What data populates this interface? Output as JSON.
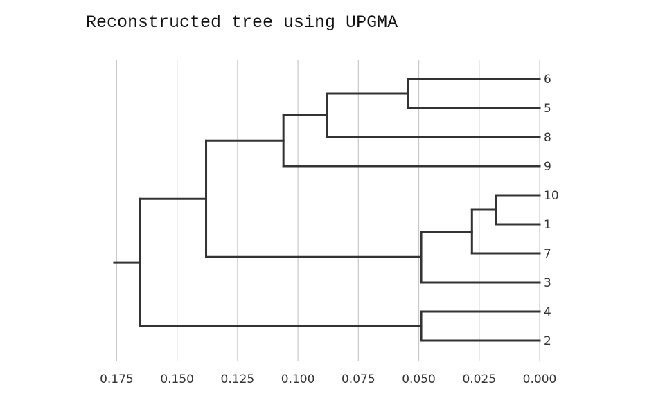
{
  "chart_data": {
    "type": "dendrogram",
    "title": "Reconstructed tree using UPGMA",
    "orientation": "root-left",
    "x_axis": {
      "ticks": [
        0.175,
        0.15,
        0.125,
        0.1,
        0.075,
        0.05,
        0.025,
        0.0
      ],
      "tick_labels": [
        "0.175",
        "0.150",
        "0.125",
        "0.100",
        "0.075",
        "0.050",
        "0.025",
        "0.000"
      ],
      "range": [
        0.175,
        0.0
      ],
      "grid": true
    },
    "leaves": [
      "6",
      "5",
      "8",
      "9",
      "10",
      "1",
      "7",
      "3",
      "4",
      "2"
    ],
    "nodes": [
      {
        "id": "n65",
        "height": 0.0545,
        "children": [
          "6",
          "5"
        ]
      },
      {
        "id": "n658",
        "height": 0.088,
        "children": [
          "n65",
          "8"
        ]
      },
      {
        "id": "n6589",
        "height": 0.106,
        "children": [
          "n658",
          "9"
        ]
      },
      {
        "id": "n101",
        "height": 0.018,
        "children": [
          "10",
          "1"
        ]
      },
      {
        "id": "n1017",
        "height": 0.028,
        "children": [
          "n101",
          "7"
        ]
      },
      {
        "id": "n10173",
        "height": 0.049,
        "children": [
          "n1017",
          "3"
        ]
      },
      {
        "id": "nA",
        "height": 0.138,
        "children": [
          "n6589",
          "n10173"
        ]
      },
      {
        "id": "n42",
        "height": 0.049,
        "children": [
          "4",
          "2"
        ]
      },
      {
        "id": "root",
        "height": 0.1655,
        "children": [
          "nA",
          "n42"
        ]
      }
    ],
    "root_stem": 0.0105
  }
}
